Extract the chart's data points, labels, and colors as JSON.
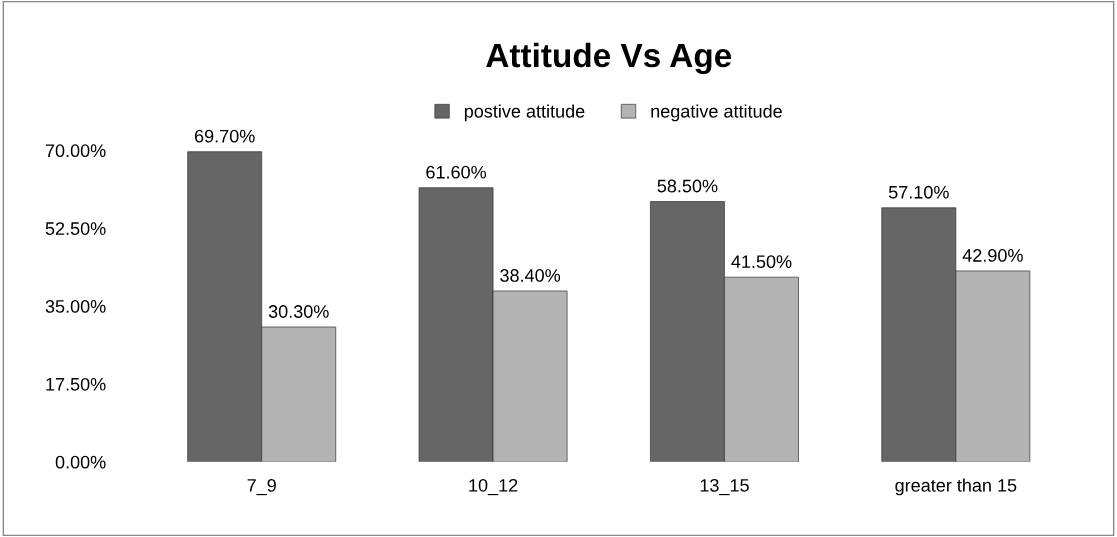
{
  "chart_data": {
    "type": "bar",
    "title": "Attitude Vs Age",
    "categories": [
      "7_9",
      "10_12",
      "13_15",
      "greater than 15"
    ],
    "series": [
      {
        "name": "postive attitude",
        "color": "#666666",
        "values": [
          69.7,
          61.6,
          58.5,
          57.1
        ],
        "value_labels": [
          "69.70%",
          "61.60%",
          "58.50%",
          "57.10%"
        ]
      },
      {
        "name": "negative attitude",
        "color": "#b3b3b3",
        "values": [
          30.3,
          38.4,
          41.5,
          42.9
        ],
        "value_labels": [
          "30.30%",
          "38.40%",
          "41.50%",
          "42.90%"
        ]
      }
    ],
    "ylim": [
      0,
      70
    ],
    "yticks": [
      {
        "value": 0,
        "label": "0.00%"
      },
      {
        "value": 17.5,
        "label": "17.50%"
      },
      {
        "value": 35,
        "label": "35.00%"
      },
      {
        "value": 52.5,
        "label": "52.50%"
      },
      {
        "value": 70,
        "label": "70.00%"
      }
    ],
    "grid": false,
    "legend": "top"
  }
}
